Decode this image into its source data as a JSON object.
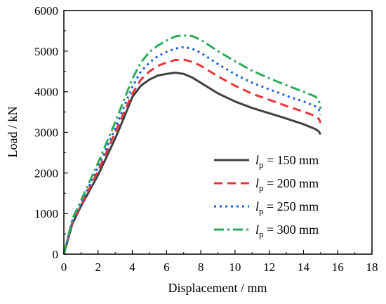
{
  "chart_data": {
    "type": "line",
    "xlabel": "Displacement / mm",
    "ylabel": "Load / kN",
    "xlim": [
      0,
      18
    ],
    "ylim": [
      0,
      6000
    ],
    "xticks": [
      "0",
      "2",
      "4",
      "6",
      "8",
      "10",
      "12",
      "14",
      "16",
      "18"
    ],
    "yticks": [
      "0",
      "1000",
      "2000",
      "3000",
      "4000",
      "5000",
      "6000"
    ],
    "legend_position": "right-center",
    "grid": false,
    "series": [
      {
        "var": "l",
        "sub": "p",
        "rest": " = 150 mm",
        "color": "#404040",
        "dash": "solid",
        "points": [
          [
            0,
            0
          ],
          [
            0.5,
            750
          ],
          [
            1,
            1180
          ],
          [
            2,
            1950
          ],
          [
            3,
            2850
          ],
          [
            3.5,
            3350
          ],
          [
            4,
            3870
          ],
          [
            4.5,
            4150
          ],
          [
            5,
            4300
          ],
          [
            5.5,
            4400
          ],
          [
            6,
            4440
          ],
          [
            6.5,
            4470
          ],
          [
            7,
            4440
          ],
          [
            7.5,
            4350
          ],
          [
            8,
            4220
          ],
          [
            9,
            3960
          ],
          [
            10,
            3760
          ],
          [
            11,
            3600
          ],
          [
            12,
            3470
          ],
          [
            13,
            3340
          ],
          [
            14,
            3200
          ],
          [
            14.7,
            3080
          ],
          [
            14.9,
            3020
          ],
          [
            15,
            2950
          ]
        ]
      },
      {
        "var": "l",
        "sub": "p",
        "rest": " = 200 mm",
        "color": "#e8343a",
        "dash": "12,7",
        "points": [
          [
            0,
            0
          ],
          [
            0.5,
            780
          ],
          [
            1,
            1200
          ],
          [
            2,
            2050
          ],
          [
            3,
            3000
          ],
          [
            4,
            3950
          ],
          [
            4.5,
            4300
          ],
          [
            5,
            4500
          ],
          [
            5.5,
            4640
          ],
          [
            6,
            4720
          ],
          [
            6.5,
            4780
          ],
          [
            7,
            4790
          ],
          [
            7.5,
            4740
          ],
          [
            8,
            4640
          ],
          [
            9,
            4380
          ],
          [
            10,
            4150
          ],
          [
            11,
            3950
          ],
          [
            12,
            3800
          ],
          [
            13,
            3650
          ],
          [
            14,
            3510
          ],
          [
            14.7,
            3400
          ],
          [
            14.9,
            3330
          ],
          [
            15,
            3230
          ]
        ]
      },
      {
        "var": "l",
        "sub": "p",
        "rest": " = 250 mm",
        "color": "#1f5fd6",
        "dash": "3,5",
        "points": [
          [
            0,
            0
          ],
          [
            0.5,
            820
          ],
          [
            1,
            1250
          ],
          [
            2,
            2150
          ],
          [
            3,
            3100
          ],
          [
            4,
            4120
          ],
          [
            4.5,
            4500
          ],
          [
            5,
            4720
          ],
          [
            5.5,
            4880
          ],
          [
            6,
            4980
          ],
          [
            6.5,
            5060
          ],
          [
            7,
            5100
          ],
          [
            7.5,
            5060
          ],
          [
            8,
            4960
          ],
          [
            9,
            4680
          ],
          [
            10,
            4430
          ],
          [
            11,
            4220
          ],
          [
            12,
            4060
          ],
          [
            13,
            3900
          ],
          [
            14,
            3760
          ],
          [
            14.7,
            3640
          ],
          [
            14.9,
            3560
          ],
          [
            15,
            3430
          ]
        ]
      },
      {
        "var": "l",
        "sub": "p",
        "rest": " = 300 mm",
        "color": "#2eaa5c",
        "dash": "14,5,3,5",
        "points": [
          [
            0,
            0
          ],
          [
            0.5,
            870
          ],
          [
            1,
            1320
          ],
          [
            2,
            2250
          ],
          [
            3,
            3250
          ],
          [
            4,
            4320
          ],
          [
            4.5,
            4720
          ],
          [
            5,
            4980
          ],
          [
            5.5,
            5140
          ],
          [
            6,
            5260
          ],
          [
            6.5,
            5360
          ],
          [
            7,
            5390
          ],
          [
            7.5,
            5370
          ],
          [
            8,
            5280
          ],
          [
            9,
            5000
          ],
          [
            10,
            4750
          ],
          [
            11,
            4520
          ],
          [
            12,
            4330
          ],
          [
            13,
            4160
          ],
          [
            14,
            4000
          ],
          [
            14.7,
            3880
          ],
          [
            14.9,
            3780
          ],
          [
            15,
            3580
          ]
        ]
      }
    ]
  }
}
